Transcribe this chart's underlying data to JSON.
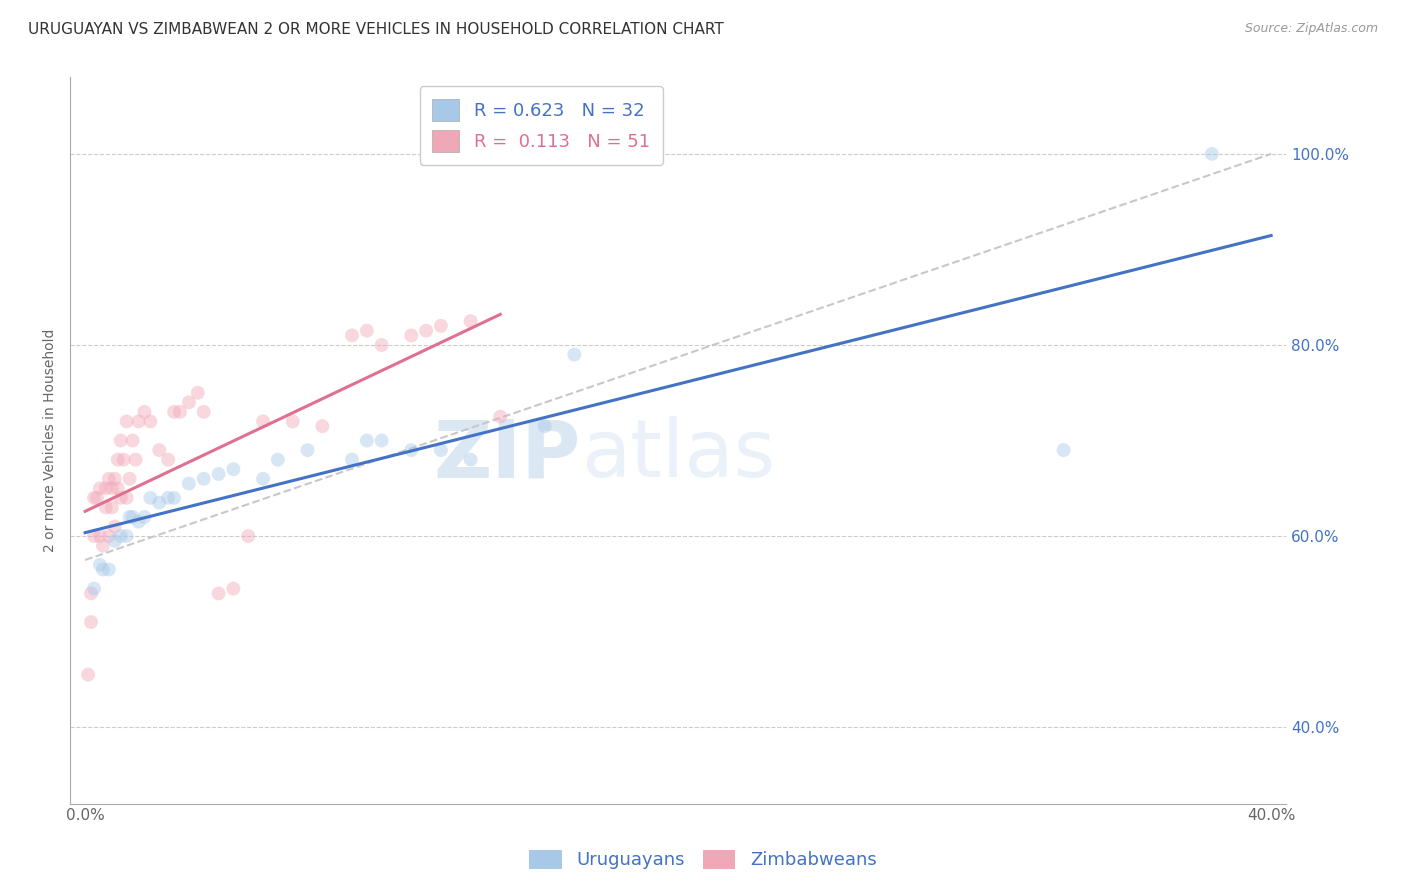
{
  "title": "URUGUAYAN VS ZIMBABWEAN 2 OR MORE VEHICLES IN HOUSEHOLD CORRELATION CHART",
  "source": "Source: ZipAtlas.com",
  "ylabel": "2 or more Vehicles in Household",
  "xlim": [
    -0.005,
    0.405
  ],
  "ylim": [
    0.32,
    1.08
  ],
  "yticks": [
    0.4,
    0.6,
    0.8,
    1.0
  ],
  "ytick_labels": [
    "40.0%",
    "60.0%",
    "80.0%",
    "100.0%"
  ],
  "xticks": [
    0.0,
    0.05,
    0.1,
    0.15,
    0.2,
    0.25,
    0.3,
    0.35,
    0.4
  ],
  "xtick_labels": [
    "0.0%",
    "",
    "",
    "",
    "",
    "",
    "",
    "",
    "40.0%"
  ],
  "background_color": "#ffffff",
  "grid_color": "#cccccc",
  "watermark_zip": "ZIP",
  "watermark_atlas": "atlas",
  "uruguayan_color": "#a8c8e8",
  "zimbabwean_color": "#f0a8b8",
  "uruguayan_line_color": "#4472c4",
  "zimbabwean_line_color": "#e07090",
  "ref_line_color": "#c8c8c8",
  "uruguayan_R": 0.623,
  "uruguayan_N": 32,
  "zimbabwean_R": 0.113,
  "zimbabwean_N": 51,
  "uruguayan_x": [
    0.003,
    0.005,
    0.006,
    0.008,
    0.01,
    0.012,
    0.014,
    0.015,
    0.016,
    0.018,
    0.02,
    0.022,
    0.025,
    0.028,
    0.03,
    0.035,
    0.04,
    0.045,
    0.05,
    0.06,
    0.065,
    0.075,
    0.09,
    0.095,
    0.1,
    0.11,
    0.12,
    0.13,
    0.155,
    0.165,
    0.33,
    0.38
  ],
  "uruguayan_y": [
    0.545,
    0.57,
    0.565,
    0.565,
    0.595,
    0.6,
    0.6,
    0.62,
    0.62,
    0.615,
    0.62,
    0.64,
    0.635,
    0.64,
    0.64,
    0.655,
    0.66,
    0.665,
    0.67,
    0.66,
    0.68,
    0.69,
    0.68,
    0.7,
    0.7,
    0.69,
    0.69,
    0.68,
    0.715,
    0.79,
    0.69,
    1.0
  ],
  "zimbabwean_x": [
    0.001,
    0.002,
    0.002,
    0.003,
    0.003,
    0.004,
    0.005,
    0.005,
    0.006,
    0.007,
    0.007,
    0.008,
    0.008,
    0.009,
    0.009,
    0.01,
    0.01,
    0.011,
    0.011,
    0.012,
    0.012,
    0.013,
    0.014,
    0.014,
    0.015,
    0.016,
    0.017,
    0.018,
    0.02,
    0.022,
    0.025,
    0.028,
    0.03,
    0.032,
    0.035,
    0.038,
    0.04,
    0.045,
    0.05,
    0.055,
    0.06,
    0.07,
    0.08,
    0.09,
    0.095,
    0.1,
    0.11,
    0.115,
    0.12,
    0.13,
    0.14
  ],
  "zimbabwean_y": [
    0.455,
    0.51,
    0.54,
    0.6,
    0.64,
    0.64,
    0.6,
    0.65,
    0.59,
    0.63,
    0.65,
    0.6,
    0.66,
    0.63,
    0.65,
    0.61,
    0.66,
    0.65,
    0.68,
    0.64,
    0.7,
    0.68,
    0.72,
    0.64,
    0.66,
    0.7,
    0.68,
    0.72,
    0.73,
    0.72,
    0.69,
    0.68,
    0.73,
    0.73,
    0.74,
    0.75,
    0.73,
    0.54,
    0.545,
    0.6,
    0.72,
    0.72,
    0.715,
    0.81,
    0.815,
    0.8,
    0.81,
    0.815,
    0.82,
    0.825,
    0.725
  ],
  "title_fontsize": 11,
  "axis_label_fontsize": 10,
  "tick_fontsize": 11,
  "legend_fontsize": 13,
  "marker_size": 100,
  "marker_alpha": 0.45,
  "line_width": 2.2
}
